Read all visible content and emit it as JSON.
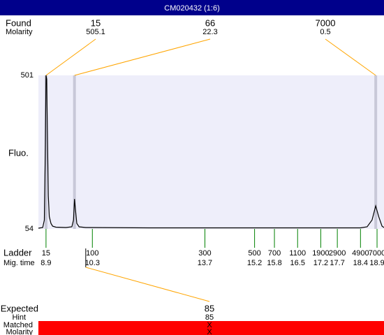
{
  "chart_data": {
    "type": "electropherogram",
    "title": "CM020432 (1:6)",
    "found_label": "Found",
    "found_molarity_label": "Molarity",
    "y_label": "Fluo.",
    "ladder_label": "Ladder",
    "time_label": "Mig. time",
    "expected_label": "Expected",
    "hint_label": "Hint",
    "matched_label": "Matched",
    "expected_molarity_label": "Molarity",
    "xlim": [
      8.67,
      19.11
    ],
    "ylim": [
      54,
      501
    ],
    "yticks": [
      54,
      501
    ],
    "found": [
      {
        "size": 15,
        "molarity": 505.1,
        "time": 8.9
      },
      {
        "size": 66,
        "molarity": 22.3,
        "time": 9.76
      },
      {
        "size": 7000,
        "molarity": 0.5,
        "time": 18.86
      }
    ],
    "ladder": {
      "sizes": [
        15,
        100,
        300,
        500,
        700,
        1100,
        1900,
        2900,
        4900,
        7000
      ],
      "times": [
        8.9,
        10.3,
        13.7,
        15.2,
        15.8,
        16.5,
        17.2,
        17.7,
        18.4,
        18.9
      ]
    },
    "expected": {
      "size": 85,
      "hint": 85,
      "matched": "X",
      "molarity": "X",
      "time": 10.1
    },
    "x": [
      8.67,
      8.8,
      8.85,
      8.88,
      8.9,
      8.92,
      8.94,
      8.97,
      9.0,
      9.05,
      9.1,
      9.2,
      9.5,
      9.68,
      9.73,
      9.76,
      9.79,
      9.83,
      9.9,
      10.1,
      12,
      18.4,
      18.6,
      18.75,
      18.86,
      18.95,
      19.05,
      19.11
    ],
    "series": [
      {
        "color": "#000000",
        "values": [
          56,
          58,
          80,
          300,
          501,
          490,
          350,
          150,
          90,
          70,
          62,
          59,
          58,
          60,
          80,
          141,
          110,
          70,
          60,
          58,
          57,
          57,
          60,
          80,
          121,
          90,
          62,
          58
        ]
      }
    ]
  }
}
